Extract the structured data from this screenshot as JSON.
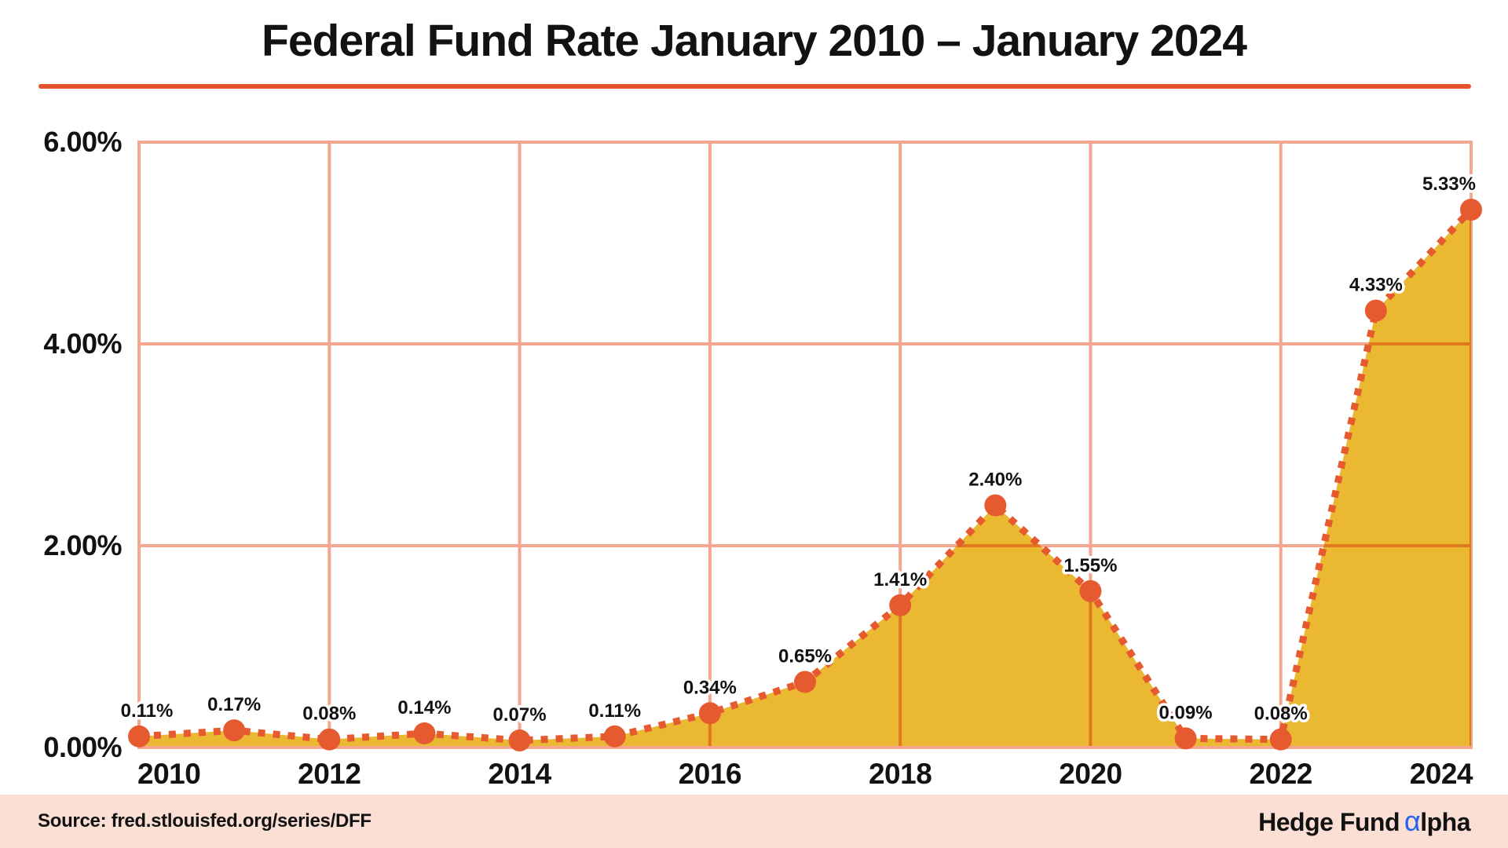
{
  "header": {
    "title": "Federal Fund Rate January 2010 – January 2024"
  },
  "footer": {
    "source": "Source: fred.stlouisfed.org/series/DFF",
    "logo": {
      "part1": "Hedge Fund",
      "alpha": "α",
      "part2": "lpha"
    }
  },
  "colors": {
    "accent_line": "#E65A30",
    "area_fill": "#EBB831",
    "gridline": "#F4A78F",
    "title_rule": "#E5512D",
    "footer_bg": "#FBDFD5",
    "logo_alpha_blue": "#2563EB",
    "text": "#121212"
  },
  "chart_data": {
    "type": "area",
    "title": "Federal Fund Rate January 2010 – January 2024",
    "series_name": "Federal Fund Rate (%)",
    "x": [
      2010,
      2011,
      2012,
      2013,
      2014,
      2015,
      2016,
      2017,
      2018,
      2019,
      2020,
      2021,
      2022,
      2023,
      2024
    ],
    "values": [
      0.11,
      0.17,
      0.08,
      0.14,
      0.07,
      0.11,
      0.34,
      0.65,
      1.41,
      2.4,
      1.55,
      0.09,
      0.08,
      4.33,
      5.33
    ],
    "point_labels": [
      "0.11%",
      "0.17%",
      "0.08%",
      "0.14%",
      "0.07%",
      "0.11%",
      "0.34%",
      "0.65%",
      "1.41%",
      "2.40%",
      "1.55%",
      "0.09%",
      "0.08%",
      "4.33%",
      "5.33%"
    ],
    "xlabel": "",
    "ylabel": "",
    "ylim": [
      0,
      6
    ],
    "xlim": [
      2010,
      2024
    ],
    "y_ticks": {
      "values": [
        0,
        2,
        4,
        6
      ],
      "labels": [
        "0.00%",
        "2.00%",
        "4.00%",
        "6.00%"
      ]
    },
    "x_ticks": {
      "values": [
        2010,
        2012,
        2014,
        2016,
        2018,
        2020,
        2022,
        2024
      ],
      "labels": [
        "2010",
        "2012",
        "2014",
        "2016",
        "2018",
        "2020",
        "2022",
        "2024"
      ]
    },
    "grid": true,
    "legend": "none",
    "line_style": "dotted",
    "marker": "circle"
  }
}
